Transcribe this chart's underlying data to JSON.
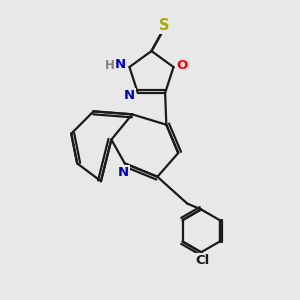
{
  "bg_color": "#e8e8e8",
  "bond_color": "#1a1a1a",
  "bond_width": 1.6,
  "atom_colors": {
    "N": "#0000cc",
    "O": "#ff0000",
    "S": "#aaaa00",
    "Cl": "#1a1a1a",
    "H": "#808080",
    "C": "#1a1a1a"
  },
  "font_size": 9.5,
  "figsize": [
    3.0,
    3.0
  ],
  "dpi": 100
}
